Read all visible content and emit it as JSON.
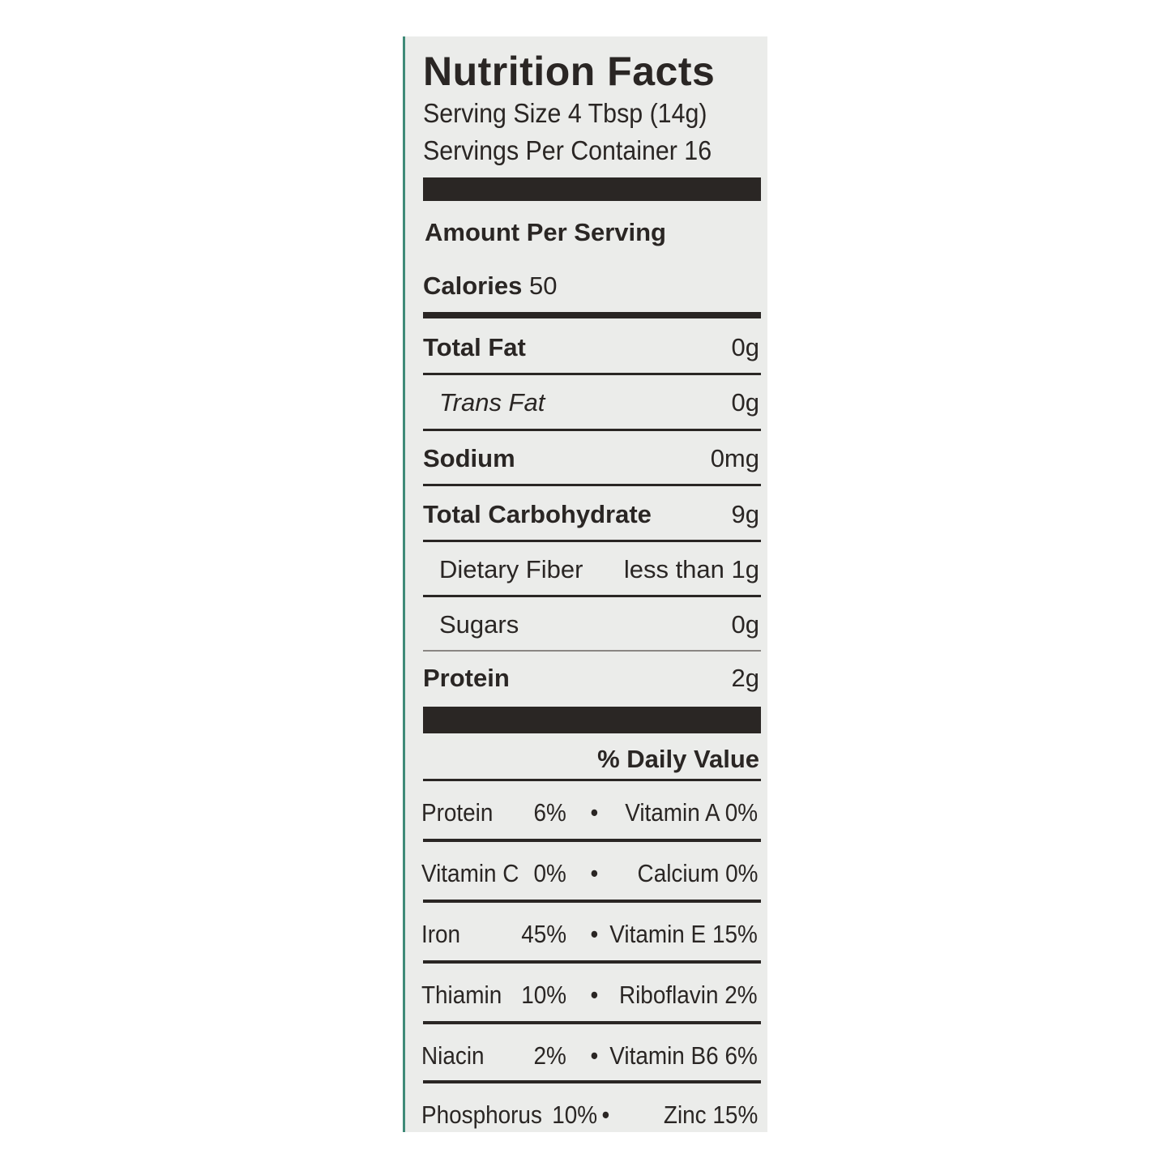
{
  "label": {
    "title": "Nutrition Facts",
    "serving_size": "Serving Size 4 Tbsp (14g)",
    "servings_per_container": "Servings Per Container 16",
    "amount_per_serving": "Amount Per Serving",
    "calories_label": "Calories",
    "calories_value": "50",
    "nutrients": [
      {
        "name": "Total Fat",
        "value": "0g"
      },
      {
        "name": "Trans Fat",
        "value": "0g"
      },
      {
        "name": "Sodium",
        "value": "0mg"
      },
      {
        "name": "Total Carbohydrate",
        "value": "9g"
      },
      {
        "name": "Dietary Fiber",
        "value": "less than 1g"
      },
      {
        "name": "Sugars",
        "value": "0g"
      },
      {
        "name": "Protein",
        "value": "2g"
      }
    ],
    "daily_value_header": "% Daily Value",
    "bullet": "•",
    "vitamins": [
      {
        "left": "Protein",
        "left_value": "6%",
        "right": "Vitamin A",
        "right_value": "0%"
      },
      {
        "left": "Vitamin C",
        "left_value": "0%",
        "right": "Calcium",
        "right_value": "0%"
      },
      {
        "left": "Iron",
        "left_value": "45%",
        "right": "Vitamin E",
        "right_value": "15%"
      },
      {
        "left": "Thiamin",
        "left_value": "10%",
        "right": "Riboflavin",
        "right_value": "2%"
      },
      {
        "left": "Niacin",
        "left_value": "2%",
        "right": "Vitamin B6",
        "right_value": "6%"
      },
      {
        "left": "Phosphorus",
        "left_value": "10%",
        "right": "Zinc",
        "right_value": "15%"
      }
    ],
    "colors": {
      "ink": "#2a2624",
      "panel": "#ebecea",
      "edge": "#3f8a78"
    }
  }
}
